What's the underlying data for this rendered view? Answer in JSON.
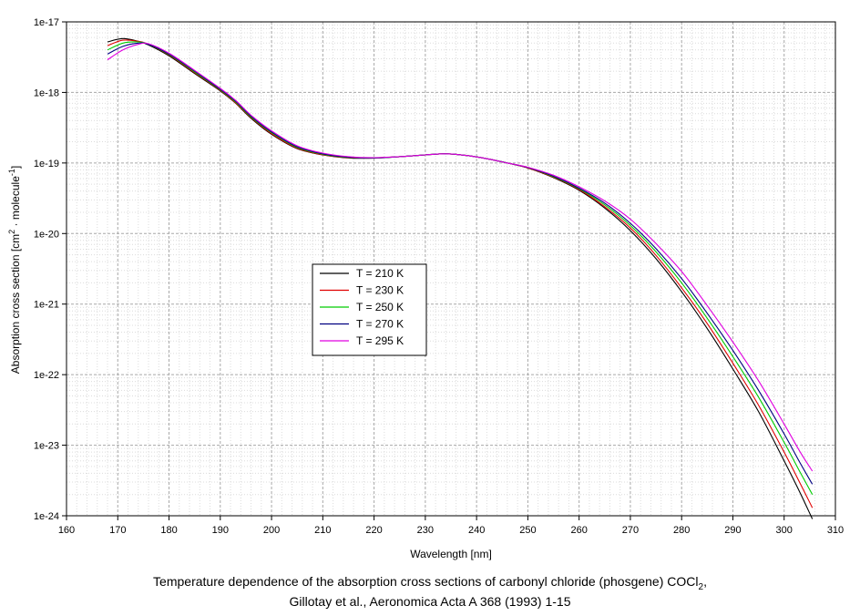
{
  "chart_data": {
    "type": "line",
    "xlabel": "Wavelength [nm]",
    "ylabel_main": "Absorption cross section [cm",
    "ylabel_sup1": "2",
    "ylabel_mid": " · molecule",
    "ylabel_sup2": "-1",
    "ylabel_end": "]",
    "xlim": [
      160,
      310
    ],
    "ylim": [
      1e-24,
      1e-17
    ],
    "yscale": "log",
    "x_ticks": [
      "160",
      "170",
      "180",
      "190",
      "200",
      "210",
      "220",
      "230",
      "240",
      "250",
      "260",
      "270",
      "280",
      "290",
      "300",
      "310"
    ],
    "y_ticks": [
      "1e-24",
      "1e-23",
      "1e-22",
      "1e-21",
      "1e-20",
      "1e-19",
      "1e-18",
      "1e-17"
    ],
    "grid": true,
    "legend_position": "center-left",
    "series": [
      {
        "name": "T = 210 K",
        "color": "#000000",
        "x": [
          168,
          171,
          174,
          176,
          180,
          185,
          190,
          193,
          196,
          200,
          205,
          210,
          215,
          220,
          225,
          230,
          234,
          238,
          242,
          246,
          250,
          255,
          260,
          265,
          270,
          275,
          280,
          285,
          290,
          295,
          300,
          303,
          305.5
        ],
        "y": [
          5.2e-18,
          5.8e-18,
          5.3e-18,
          4.7e-18,
          3.3e-18,
          1.85e-18,
          1.05e-18,
          7e-19,
          4.3e-19,
          2.55e-19,
          1.6e-19,
          1.3e-19,
          1.18e-19,
          1.17e-19,
          1.23e-19,
          1.3e-19,
          1.35e-19,
          1.28e-19,
          1.15e-19,
          1e-19,
          8.5e-20,
          6.2e-20,
          4.1e-20,
          2.3e-20,
          1.1e-20,
          4.4e-21,
          1.5e-21,
          4.5e-22,
          1.2e-22,
          3e-23,
          6e-24,
          2.2e-24,
          9e-25
        ]
      },
      {
        "name": "T = 230 K",
        "color": "#e00000",
        "x": [
          168,
          171,
          174,
          176,
          180,
          185,
          190,
          193,
          196,
          200,
          205,
          210,
          215,
          220,
          225,
          230,
          234,
          238,
          242,
          246,
          250,
          255,
          260,
          265,
          270,
          275,
          280,
          285,
          290,
          295,
          300,
          303,
          305.5
        ],
        "y": [
          4.6e-18,
          5.5e-18,
          5.3e-18,
          4.8e-18,
          3.4e-18,
          1.9e-18,
          1.07e-18,
          7.1e-19,
          4.4e-19,
          2.6e-19,
          1.62e-19,
          1.31e-19,
          1.19e-19,
          1.18e-19,
          1.23e-19,
          1.3e-19,
          1.35e-19,
          1.28e-19,
          1.15e-19,
          1e-19,
          8.5e-20,
          6.3e-20,
          4.2e-20,
          2.4e-20,
          1.2e-20,
          4.9e-21,
          1.7e-21,
          5.3e-22,
          1.45e-22,
          3.7e-23,
          8e-24,
          3e-24,
          1.3e-24
        ]
      },
      {
        "name": "T = 250 K",
        "color": "#00cc00",
        "x": [
          168,
          171,
          174,
          176,
          180,
          185,
          190,
          193,
          196,
          200,
          205,
          210,
          215,
          220,
          225,
          230,
          234,
          238,
          242,
          246,
          250,
          255,
          260,
          265,
          270,
          275,
          280,
          285,
          290,
          295,
          300,
          303,
          305.5
        ],
        "y": [
          4e-18,
          5e-18,
          5.2e-18,
          4.8e-18,
          3.45e-18,
          1.95e-18,
          1.09e-18,
          7.3e-19,
          4.5e-19,
          2.7e-19,
          1.66e-19,
          1.33e-19,
          1.2e-19,
          1.18e-19,
          1.23e-19,
          1.3e-19,
          1.35e-19,
          1.28e-19,
          1.15e-19,
          1e-19,
          8.6e-20,
          6.4e-20,
          4.3e-20,
          2.55e-20,
          1.3e-20,
          5.5e-21,
          2e-21,
          6.3e-22,
          1.8e-22,
          4.8e-23,
          1.1e-23,
          4.3e-24,
          2e-24
        ]
      },
      {
        "name": "T = 270 K",
        "color": "#000080",
        "x": [
          168,
          171,
          174,
          176,
          180,
          185,
          190,
          193,
          196,
          200,
          205,
          210,
          215,
          220,
          225,
          230,
          234,
          238,
          242,
          246,
          250,
          255,
          260,
          265,
          270,
          275,
          280,
          285,
          290,
          295,
          300,
          303,
          305.5
        ],
        "y": [
          3.5e-18,
          4.5e-18,
          5e-18,
          4.8e-18,
          3.5e-18,
          2e-18,
          1.11e-18,
          7.5e-19,
          4.6e-19,
          2.75e-19,
          1.7e-19,
          1.35e-19,
          1.21e-19,
          1.18e-19,
          1.23e-19,
          1.3e-19,
          1.35e-19,
          1.28e-19,
          1.15e-19,
          1e-19,
          8.6e-20,
          6.5e-20,
          4.4e-20,
          2.7e-20,
          1.4e-20,
          6.1e-21,
          2.3e-21,
          7.4e-22,
          2.2e-22,
          6e-23,
          1.45e-23,
          5.8e-24,
          2.8e-24
        ]
      },
      {
        "name": "T = 295 K",
        "color": "#e000e0",
        "x": [
          168,
          171,
          174,
          176,
          180,
          185,
          190,
          193,
          196,
          200,
          205,
          210,
          215,
          220,
          225,
          230,
          234,
          238,
          242,
          246,
          250,
          255,
          260,
          265,
          270,
          275,
          280,
          285,
          290,
          295,
          300,
          303,
          305.5
        ],
        "y": [
          2.9e-18,
          4e-18,
          4.8e-18,
          4.9e-18,
          3.6e-18,
          2.05e-18,
          1.14e-18,
          7.7e-19,
          4.75e-19,
          2.85e-19,
          1.75e-19,
          1.38e-19,
          1.23e-19,
          1.19e-19,
          1.23e-19,
          1.3e-19,
          1.35e-19,
          1.28e-19,
          1.15e-19,
          1e-19,
          8.7e-20,
          6.7e-20,
          4.6e-20,
          2.9e-20,
          1.6e-20,
          7.2e-21,
          2.9e-21,
          9.5e-22,
          2.9e-22,
          8.2e-23,
          2e-23,
          8.3e-24,
          4.3e-24
        ]
      }
    ]
  },
  "caption": {
    "line1_main": "Temperature dependence of the absorption cross sections of carbonyl chloride (phosgene) COCl",
    "line1_sub": "2",
    "line1_end": ",",
    "line2": "Gillotay et al., Aeronomica Acta A 368 (1993) 1-15"
  }
}
